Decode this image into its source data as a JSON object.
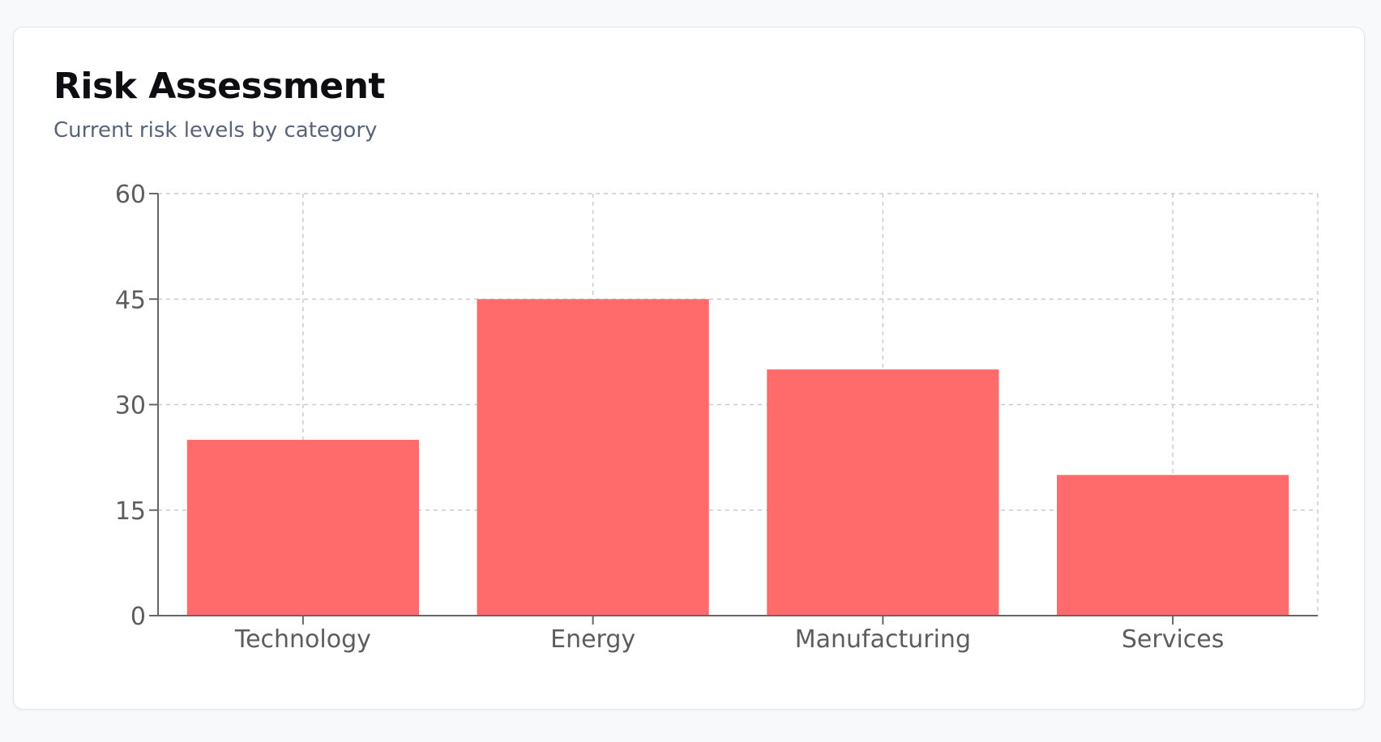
{
  "card": {
    "title": "Risk Assessment",
    "subtitle": "Current risk levels by category"
  },
  "chart_data": {
    "type": "bar",
    "categories": [
      "Technology",
      "Energy",
      "Manufacturing",
      "Services"
    ],
    "values": [
      25,
      45,
      35,
      20
    ],
    "yticks": [
      0,
      15,
      30,
      45,
      60
    ],
    "ylim": [
      0,
      60
    ],
    "grid": true,
    "legend": false,
    "bar_color": "#ff6b6b",
    "grid_color": "#cccccc",
    "axis_color": "#666666"
  }
}
